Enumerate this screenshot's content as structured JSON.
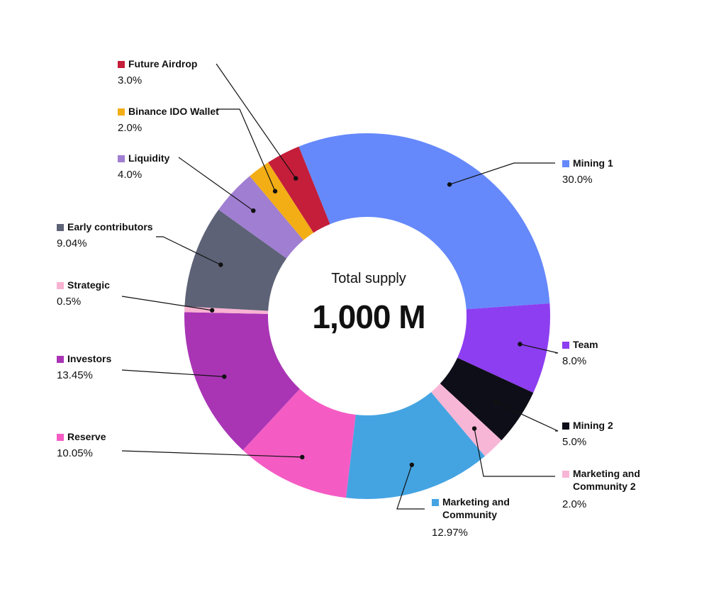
{
  "center": {
    "subtitle": "Total supply",
    "value": "1,000 M"
  },
  "chart_data": {
    "type": "pie",
    "donut": true,
    "series": [
      {
        "label": "Mining 1",
        "value": 30.0,
        "display": "30.0%",
        "color": "#6589fb"
      },
      {
        "label": "Team",
        "value": 8.0,
        "display": "8.0%",
        "color": "#8d3ef0"
      },
      {
        "label": "Mining 2",
        "value": 5.0,
        "display": "5.0%",
        "color": "#0e0e18"
      },
      {
        "label": "Marketing and Community 2",
        "value": 2.0,
        "display": "2.0%",
        "color": "#f8b6d6"
      },
      {
        "label": "Marketing and Community",
        "value": 12.97,
        "display": "12.97%",
        "color": "#44a4e2"
      },
      {
        "label": "Reserve",
        "value": 10.05,
        "display": "10.05%",
        "color": "#f45cc4"
      },
      {
        "label": "Investors",
        "value": 13.45,
        "display": "13.45%",
        "color": "#a935b5"
      },
      {
        "label": "Strategic",
        "value": 0.5,
        "display": "0.5%",
        "color": "#f8b2d2"
      },
      {
        "label": "Early contributors",
        "value": 9.04,
        "display": "9.04%",
        "color": "#5d6276"
      },
      {
        "label": "Liquidity",
        "value": 4.0,
        "display": "4.0%",
        "color": "#a07ed2"
      },
      {
        "label": "Binance IDO Wallet",
        "value": 2.0,
        "display": "2.0%",
        "color": "#f3ae16"
      },
      {
        "label": "Future Airdrop",
        "value": 3.0,
        "display": "3.0%",
        "color": "#c41e3a"
      }
    ]
  }
}
